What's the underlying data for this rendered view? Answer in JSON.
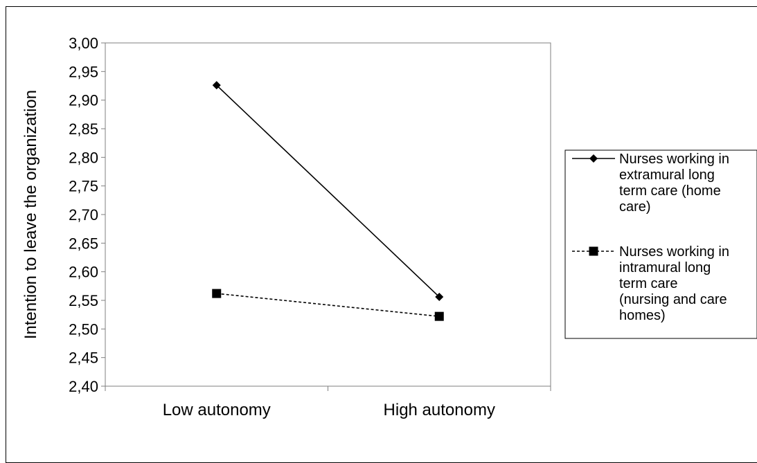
{
  "chart_data": {
    "type": "line",
    "title": "",
    "xlabel": "",
    "ylabel": "Intention to leave the organization",
    "categories": [
      "Low autonomy",
      "High autonomy"
    ],
    "ylim": [
      2.4,
      3.0
    ],
    "ystep": 0.05,
    "yticks": [
      "2,40",
      "2,45",
      "2,50",
      "2,55",
      "2,60",
      "2,65",
      "2,70",
      "2,75",
      "2,80",
      "2,85",
      "2,90",
      "2,95",
      "3,00"
    ],
    "grid": false,
    "legend_position": "right",
    "series": [
      {
        "name_lines": [
          "Nurses working in",
          "extramural long",
          "term care (home",
          "care)"
        ],
        "values": [
          2.926,
          2.556
        ],
        "marker": "diamond",
        "line_style": "solid",
        "color": "#000000"
      },
      {
        "name_lines": [
          "Nurses working in",
          "intramural long",
          "term care",
          "(nursing and care",
          "homes)"
        ],
        "values": [
          2.562,
          2.522
        ],
        "marker": "square",
        "line_style": "dashed",
        "color": "#000000"
      }
    ]
  }
}
